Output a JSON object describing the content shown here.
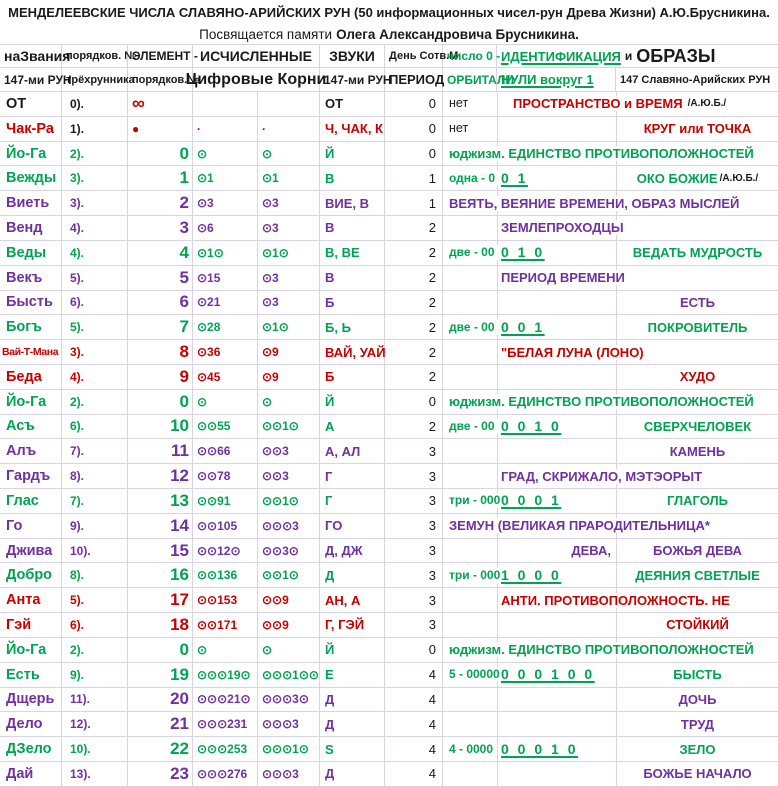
{
  "title": "МЕНДЕЛЕЕВСКИЕ ЧИСЛА СЛАВЯНО-АРИЙСКИХ РУН (50 информационных чисел-рун Древа Жизни) А.Ю.Брусникина.",
  "dedication": {
    "prefix": "Посвящается памяти",
    "name": "Олега Александровича Брусникина."
  },
  "colors": {
    "red": "#c80000",
    "green": "#00a351",
    "purple": "#7030a0",
    "text": "#1a1a1a",
    "grid": "#d8d4e6"
  },
  "header": {
    "r1": {
      "names": "наЗвания",
      "ordinal": "порядков. №",
      "element": "ЭЛЕМЕНТ -",
      "computed": "ИСЧИСЛЕННЫЕ",
      "sounds": "ЗВУКИ",
      "day": "День Сотв.М",
      "zero": "число 0 -",
      "identification": "ИДЕНТИФИКАЦИЯ",
      "and": "и",
      "images": "ОБРАЗЫ"
    },
    "r2": {
      "names": "147-ми РУН",
      "ordinal": "трёхрунника",
      "element": "порядков.№",
      "computed": "Цифровые Корни",
      "sounds": "147-ми РУН",
      "day": "ПЕРИОД",
      "zero": "ОРБИТАЛИ",
      "nulls": "НУЛИ вокруг 1",
      "images": "147 Славяно-Арийских РУН"
    }
  },
  "rows": [
    {
      "name": "ОТ",
      "color": "black",
      "ord": "0).",
      "num": "∞",
      "num_left": true,
      "num_color": "red",
      "num_size": "inf",
      "root1": "",
      "root2": "",
      "sounds": "ОТ",
      "period": "0",
      "right": [
        {
          "l": 6,
          "t": "нет",
          "s": "plain"
        },
        {
          "l": 70,
          "t": "ПРОСТРАНСТВО и ВРЕМЯ",
          "s": "note",
          "c": "red",
          "sfx": "/А.Ю.Б./"
        }
      ]
    },
    {
      "name": "Чак-Ра",
      "color": "red",
      "ord": "1).",
      "ord_color": "black",
      "num": "●",
      "num_left": true,
      "num_size": "dot",
      "root1": "·",
      "root2": "·",
      "sounds": "Ч, ЧАК, К",
      "period": "0",
      "right": [
        {
          "l": 6,
          "t": "нет",
          "s": "plain"
        },
        {
          "b": "obraz",
          "t": "КРУГ или ТОЧКА",
          "s": "note"
        }
      ]
    },
    {
      "name": "Йо-Га",
      "color": "green",
      "ord": "2).",
      "num": "0",
      "root1": "⊙",
      "root2": "⊙",
      "sounds": "Й",
      "period": "0",
      "right": [
        {
          "l": 6,
          "t": "юджизм. ЕДИНСТВО ПРОТИВОПОЛОЖНОСТЕЙ",
          "s": "note"
        }
      ]
    },
    {
      "name": "Вежды",
      "color": "green",
      "ord": "3).",
      "num": "1",
      "root1": "⊙1",
      "root2": "⊙1",
      "sounds": "В",
      "period": "1",
      "right": [
        {
          "l": 6,
          "t": "одна - 0",
          "s": "orb"
        },
        {
          "l": 58,
          "t": "0 1",
          "s": "nul"
        },
        {
          "b": "obraz",
          "t": "ОКО БОЖИЕ",
          "s": "note",
          "sfx": "/А.Ю.Б./"
        }
      ]
    },
    {
      "name": "Виеть",
      "color": "purple",
      "ord": "3).",
      "num": "2",
      "root1": "⊙3",
      "root2": "⊙3",
      "sounds": "ВИЕ, В",
      "period": "1",
      "right": [
        {
          "l": 6,
          "t": "ВЕЯТЬ, ВЕЯНИЕ ВРЕМЕНИ, ОБРАЗ МЫСЛЕЙ",
          "s": "note"
        }
      ]
    },
    {
      "name": "Венд",
      "color": "purple",
      "ord": "4).",
      "num": "3",
      "root1": "⊙6",
      "root2": "⊙3",
      "sounds": "В",
      "period": "2",
      "right": [
        {
          "l": 58,
          "t": "ЗЕМЛЕПРОХОДЦЫ",
          "s": "note"
        }
      ]
    },
    {
      "name": "Веды",
      "color": "green",
      "ord": "4).",
      "num": "4",
      "root1": "⊙1⊙",
      "root2": "⊙1⊙",
      "sounds": "В, ВЕ",
      "period": "2",
      "right": [
        {
          "l": 6,
          "t": "две - 00",
          "s": "orb"
        },
        {
          "l": 58,
          "t": "0 1 0",
          "s": "nul"
        },
        {
          "b": "obraz",
          "t": "ВЕДАТЬ МУДРОСТЬ",
          "s": "note"
        }
      ]
    },
    {
      "name": "Векъ",
      "color": "purple",
      "ord": "5).",
      "num": "5",
      "root1": "⊙15",
      "root2": "⊙3",
      "sounds": "В",
      "period": "2",
      "right": [
        {
          "l": 58,
          "t": "ПЕРИОД ВРЕМЕНИ",
          "s": "note"
        }
      ]
    },
    {
      "name": "Бысть",
      "color": "purple",
      "ord": "6).",
      "num": "6",
      "root1": "⊙21",
      "root2": "⊙3",
      "sounds": "Б",
      "period": "2",
      "right": [
        {
          "b": "obraz",
          "t": "ЕСТЬ",
          "s": "note"
        }
      ]
    },
    {
      "name": "Богъ",
      "color": "green",
      "ord": "5).",
      "num": "7",
      "root1": "⊙28",
      "root2": "⊙1⊙",
      "sounds": "Б, Ь",
      "period": "2",
      "right": [
        {
          "l": 6,
          "t": "две - 00",
          "s": "orb"
        },
        {
          "l": 58,
          "t": "0 0 1",
          "s": "nul"
        },
        {
          "b": "obraz",
          "t": "ПОКРОВИТЕЛЬ",
          "s": "note"
        }
      ]
    },
    {
      "name": "Вай-Т-Мана",
      "color": "red",
      "small": true,
      "ord": "3).",
      "num": "8",
      "root1": "⊙36",
      "root2": "⊙9",
      "sounds": "ВАЙ, УАЙ",
      "period": "2",
      "right": [
        {
          "l": 58,
          "t": "\"БЕЛАЯ ЛУНА (ЛОНО)",
          "s": "note"
        }
      ]
    },
    {
      "name": "Беда",
      "color": "red",
      "ord": "4).",
      "num": "9",
      "root1": "⊙45",
      "root2": "⊙9",
      "sounds": "Б",
      "period": "2",
      "right": [
        {
          "b": "obraz",
          "t": "ХУДО",
          "s": "note"
        }
      ]
    },
    {
      "name": "Йо-Га",
      "color": "green",
      "ord": "2).",
      "num": "0",
      "root1": "⊙",
      "root2": "⊙",
      "sounds": "Й",
      "period": "0",
      "right": [
        {
          "l": 6,
          "t": "юджизм. ЕДИНСТВО ПРОТИВОПОЛОЖНОСТЕЙ",
          "s": "note"
        }
      ]
    },
    {
      "name": "Асъ",
      "color": "green",
      "ord": "6).",
      "num": "10",
      "root1": "⊙⊙55",
      "root2": "⊙⊙1⊙",
      "sounds": "А",
      "period": "2",
      "right": [
        {
          "l": 6,
          "t": "две - 00",
          "s": "orb"
        },
        {
          "l": 58,
          "t": "0 0 1 0",
          "s": "nul"
        },
        {
          "b": "obraz",
          "t": "СВЕРХЧЕЛОВЕК",
          "s": "note"
        }
      ]
    },
    {
      "name": "Алъ",
      "color": "purple",
      "ord": "7).",
      "num": "11",
      "root1": "⊙⊙66",
      "root2": "⊙⊙3",
      "sounds": "А, АЛ",
      "period": "3",
      "right": [
        {
          "b": "obraz",
          "t": "КАМЕНЬ",
          "s": "note"
        }
      ]
    },
    {
      "name": "Гардъ",
      "color": "purple",
      "ord": "8).",
      "num": "12",
      "root1": "⊙⊙78",
      "root2": "⊙⊙3",
      "sounds": "Г",
      "period": "3",
      "right": [
        {
          "l": 58,
          "t": "ГРАД, СКРИЖАЛО, МЭТЭОРЫТ",
          "s": "note"
        }
      ]
    },
    {
      "name": "Глас",
      "color": "green",
      "ord": "7).",
      "num": "13",
      "root1": "⊙⊙91",
      "root2": "⊙⊙1⊙",
      "sounds": "Г",
      "period": "3",
      "right": [
        {
          "l": 6,
          "t": "три - 000",
          "s": "orb"
        },
        {
          "l": 58,
          "t": "0 0 0 1",
          "s": "nul"
        },
        {
          "b": "obraz",
          "t": "ГЛАГОЛЬ",
          "s": "note"
        }
      ]
    },
    {
      "name": "Го",
      "color": "purple",
      "ord": "9).",
      "num": "14",
      "root1": "⊙⊙105",
      "root2": "⊙⊙⊙3",
      "sounds": "ГО",
      "period": "3",
      "right": [
        {
          "l": 6,
          "t": "ЗЕМУН (ВЕЛИКАЯ ПРАРОДИТЕЛЬНИЦА*",
          "s": "note"
        }
      ]
    },
    {
      "name": "Джива",
      "color": "purple",
      "ord": "10).",
      "num": "15",
      "root1": "⊙⊙12⊙",
      "root2": "⊙⊙3⊙",
      "sounds": "Д, ДЖ",
      "period": "3",
      "right": [
        {
          "b": "nulls",
          "a": "right",
          "t": "ДЕВА,",
          "s": "note"
        },
        {
          "b": "obraz",
          "t": "БОЖЬЯ ДЕВА",
          "s": "note"
        }
      ]
    },
    {
      "name": "Добро",
      "color": "green",
      "ord": "8).",
      "num": "16",
      "root1": "⊙⊙136",
      "root2": "⊙⊙1⊙",
      "sounds": "Д",
      "period": "3",
      "right": [
        {
          "l": 6,
          "t": "три - 000",
          "s": "orb"
        },
        {
          "l": 58,
          "t": "1 0 0 0",
          "s": "nul"
        },
        {
          "b": "obraz",
          "t": "ДЕЯНИЯ СВЕТЛЫЕ",
          "s": "note"
        }
      ]
    },
    {
      "name": "Анта",
      "color": "red",
      "ord": "5).",
      "num": "17",
      "root1": "⊙⊙153",
      "root2": "⊙⊙9",
      "sounds": "АН, А",
      "period": "3",
      "right": [
        {
          "l": 58,
          "t": "АНТИ. ПРОТИВОПОЛОЖНОСТЬ. НЕ",
          "s": "note"
        }
      ]
    },
    {
      "name": "Гэй",
      "color": "red",
      "ord": "6).",
      "num": "18",
      "root1": "⊙⊙171",
      "root2": "⊙⊙9",
      "sounds": "Г, ГЭЙ",
      "period": "3",
      "right": [
        {
          "b": "obraz",
          "t": "СТОЙКИЙ",
          "s": "note"
        }
      ]
    },
    {
      "name": "Йо-Га",
      "color": "green",
      "ord": "2).",
      "num": "0",
      "root1": "⊙",
      "root2": "⊙",
      "sounds": "Й",
      "period": "0",
      "right": [
        {
          "l": 6,
          "t": "юджизм. ЕДИНСТВО ПРОТИВОПОЛОЖНОСТЕЙ",
          "s": "note"
        }
      ]
    },
    {
      "name": "Есть",
      "color": "green",
      "ord": "9).",
      "num": "19",
      "root1": "⊙⊙⊙19⊙",
      "root2": "⊙⊙⊙1⊙⊙",
      "sounds": "Е",
      "period": "4",
      "right": [
        {
          "l": 6,
          "t": "5 - 00000",
          "s": "orb"
        },
        {
          "l": 58,
          "t": "0 0 0 1 0 0",
          "s": "nul"
        },
        {
          "b": "obraz",
          "t": "БЫСТЬ",
          "s": "note"
        }
      ]
    },
    {
      "name": "Дщерь",
      "color": "purple",
      "ord": "11).",
      "num": "20",
      "root1": "⊙⊙⊙21⊙",
      "root2": "⊙⊙⊙3⊙",
      "sounds": "Д",
      "period": "4",
      "right": [
        {
          "b": "obraz",
          "t": "ДОЧЬ",
          "s": "note"
        }
      ]
    },
    {
      "name": "Дело",
      "color": "purple",
      "ord": "12).",
      "num": "21",
      "root1": "⊙⊙⊙231",
      "root2": "⊙⊙⊙3",
      "sounds": "Д",
      "period": "4",
      "right": [
        {
          "b": "obraz",
          "t": "ТРУД",
          "s": "note"
        }
      ]
    },
    {
      "name": "ДЗело",
      "color": "green",
      "ord": "10).",
      "num": "22",
      "root1": "⊙⊙⊙253",
      "root2": "⊙⊙⊙1⊙",
      "sounds": "S",
      "period": "4",
      "right": [
        {
          "l": 6,
          "t": "4 - 0000",
          "s": "orb"
        },
        {
          "l": 58,
          "t": "0 0 0 1 0",
          "s": "nul"
        },
        {
          "b": "obraz",
          "t": "ЗЕЛО",
          "s": "note"
        }
      ]
    },
    {
      "name": "Дай",
      "color": "purple",
      "ord": "13).",
      "num": "23",
      "root1": "⊙⊙⊙276",
      "root2": "⊙⊙⊙3",
      "sounds": "Д",
      "period": "4",
      "right": [
        {
          "b": "obraz",
          "t": "БОЖЬЕ НАЧАЛО",
          "s": "note"
        }
      ]
    }
  ]
}
